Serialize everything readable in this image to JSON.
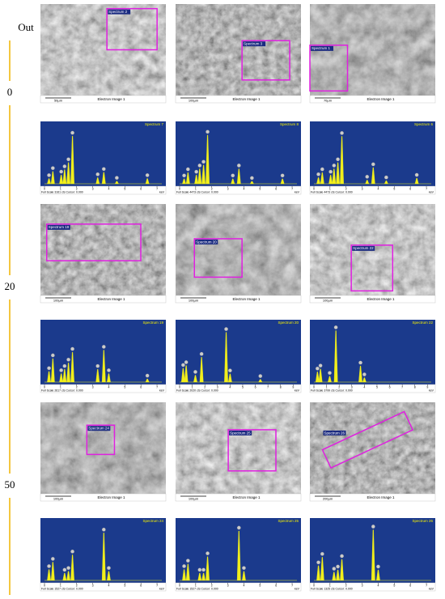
{
  "row_labels": [
    "Out",
    "0",
    "20",
    "50"
  ],
  "groups": [
    {
      "sem": [
        {
          "spectrum": "Spectrum 2",
          "scale": "50µm",
          "caption": "Electron Image 1"
        },
        {
          "spectrum": "Spectrum 3",
          "scale": "100µm",
          "caption": "Electron Image 1"
        },
        {
          "spectrum": "Spectrum 1",
          "scale": "70µm",
          "caption": "Electron Image 1"
        }
      ],
      "eds": [
        {
          "type": "spectrum",
          "title": "Spectrum 7",
          "footer": "Full Scale 3161 cts Cursor: 0.000",
          "unit": "keV",
          "xlim": [
            0,
            7.3
          ],
          "xticks": [
            0,
            1,
            2,
            3,
            4,
            5,
            6,
            7
          ],
          "ylim": [
            0,
            3161
          ],
          "x": [
            0.28,
            0.52,
            1.04,
            1.25,
            1.49,
            1.74,
            3.31,
            3.69,
            4.5,
            6.4
          ],
          "values": [
            300,
            700,
            500,
            800,
            1200,
            2700,
            350,
            650,
            150,
            300
          ]
        },
        {
          "type": "spectrum",
          "title": "Spectrum 8",
          "footer": "Full Scale 4473 cts Cursor: 0.000",
          "unit": "keV",
          "xlim": [
            0,
            7.3
          ],
          "xticks": [
            0,
            1,
            2,
            3,
            4,
            5,
            6,
            7
          ],
          "ylim": [
            0,
            4473
          ],
          "x": [
            0.28,
            0.52,
            1.04,
            1.25,
            1.49,
            1.74,
            3.31,
            3.69,
            4.5,
            6.4
          ],
          "values": [
            400,
            900,
            700,
            1200,
            1500,
            3900,
            400,
            1200,
            200,
            400
          ]
        },
        {
          "type": "spectrum",
          "title": "Spectrum 6",
          "footer": "Full Scale 4473 cts Cursor: 0.000",
          "unit": "keV",
          "xlim": [
            0,
            7.3
          ],
          "xticks": [
            0,
            1,
            2,
            3,
            4,
            5,
            6,
            7
          ],
          "ylim": [
            0,
            4473
          ],
          "x": [
            0.28,
            0.52,
            1.04,
            1.25,
            1.49,
            1.74,
            3.31,
            3.69,
            4.5,
            6.4
          ],
          "values": [
            500,
            900,
            700,
            1200,
            1700,
            3800,
            300,
            1300,
            250,
            450
          ]
        }
      ]
    },
    {
      "sem": [
        {
          "spectrum": "Spectrum 19",
          "scale": "100µm",
          "caption": "Electron Image 1"
        },
        {
          "spectrum": "Spectrum 20",
          "scale": "100µm",
          "caption": "Electron Image 1"
        },
        {
          "spectrum": "Spectrum 22",
          "scale": "100µm",
          "caption": "Electron Image 1"
        }
      ],
      "eds": [
        {
          "type": "spectrum",
          "title": "Spectrum 19",
          "footer": "Full Scale 2617 cts Cursor: 0.000",
          "unit": "keV",
          "xlim": [
            0,
            7.3
          ],
          "xticks": [
            0,
            1,
            2,
            3,
            4,
            5,
            6,
            7
          ],
          "ylim": [
            0,
            2617
          ],
          "x": [
            0.28,
            0.52,
            1.04,
            1.25,
            1.49,
            1.74,
            3.31,
            3.69,
            4.0,
            6.4
          ],
          "values": [
            500,
            1100,
            400,
            600,
            900,
            1400,
            600,
            1500,
            400,
            150
          ]
        },
        {
          "type": "spectrum",
          "title": "Spectrum 20",
          "footer": "Full Scale 2020 cts Cursor: 0.000",
          "unit": "keV",
          "xlim": [
            0,
            9.3
          ],
          "xticks": [
            0,
            1,
            2,
            3,
            4,
            5,
            6,
            7,
            8,
            9
          ],
          "ylim": [
            0,
            2020
          ],
          "x": [
            0.28,
            0.52,
            1.25,
            1.74,
            3.69,
            4.0,
            6.4
          ],
          "values": [
            500,
            600,
            250,
            900,
            1800,
            300,
            100
          ]
        },
        {
          "type": "spectrum",
          "title": "Spectrum 22",
          "footer": "Full Scale 3799 cts Cursor: 0.000",
          "unit": "keV",
          "xlim": [
            0,
            9.3
          ],
          "xticks": [
            0,
            1,
            2,
            3,
            4,
            5,
            6,
            7,
            8,
            9
          ],
          "ylim": [
            0,
            3799
          ],
          "x": [
            0.28,
            0.52,
            1.25,
            1.74,
            3.69,
            4.0
          ],
          "values": [
            700,
            900,
            400,
            3500,
            1100,
            300
          ]
        }
      ]
    },
    {
      "sem": [
        {
          "spectrum": "Spectrum 24",
          "scale": "100µm",
          "caption": "Electron Image 1"
        },
        {
          "spectrum": "Spectrum 25",
          "scale": "100µm",
          "caption": "Electron Image 1"
        },
        {
          "spectrum": "Spectrum 26",
          "scale": "200µm",
          "caption": "Electron Image 1"
        }
      ],
      "eds": [
        {
          "type": "spectrum",
          "title": "Spectrum 24",
          "footer": "Full Scale 1527 cts Cursor: 0.000",
          "unit": "keV",
          "xlim": [
            0,
            7.3
          ],
          "xticks": [
            0,
            1,
            2,
            3,
            4,
            5,
            6,
            7
          ],
          "ylim": [
            0,
            1527
          ],
          "x": [
            0.28,
            0.52,
            1.25,
            1.49,
            1.74,
            3.69,
            4.0
          ],
          "values": [
            300,
            500,
            200,
            250,
            700,
            1300,
            250
          ]
        },
        {
          "type": "spectrum",
          "title": "Spectrum 25",
          "footer": "Full Scale 1527 cts Cursor: 0.000",
          "unit": "keV",
          "xlim": [
            0,
            7.3
          ],
          "xticks": [
            0,
            1,
            2,
            3,
            4,
            5,
            6,
            7
          ],
          "ylim": [
            0,
            1527
          ],
          "x": [
            0.28,
            0.52,
            1.25,
            1.49,
            1.74,
            3.69,
            4.0
          ],
          "values": [
            300,
            450,
            200,
            200,
            650,
            1350,
            250
          ]
        },
        {
          "type": "spectrum",
          "title": "Spectrum 26",
          "footer": "Full Scale 1325 cts Cursor: 0.000",
          "unit": "keV",
          "xlim": [
            0,
            7.3
          ],
          "xticks": [
            0,
            1,
            2,
            3,
            4,
            5,
            6,
            7
          ],
          "ylim": [
            0,
            1325
          ],
          "x": [
            0.28,
            0.52,
            1.25,
            1.49,
            1.74,
            3.69,
            4.0
          ],
          "values": [
            350,
            550,
            200,
            250,
            500,
            1200,
            250
          ]
        }
      ]
    }
  ]
}
